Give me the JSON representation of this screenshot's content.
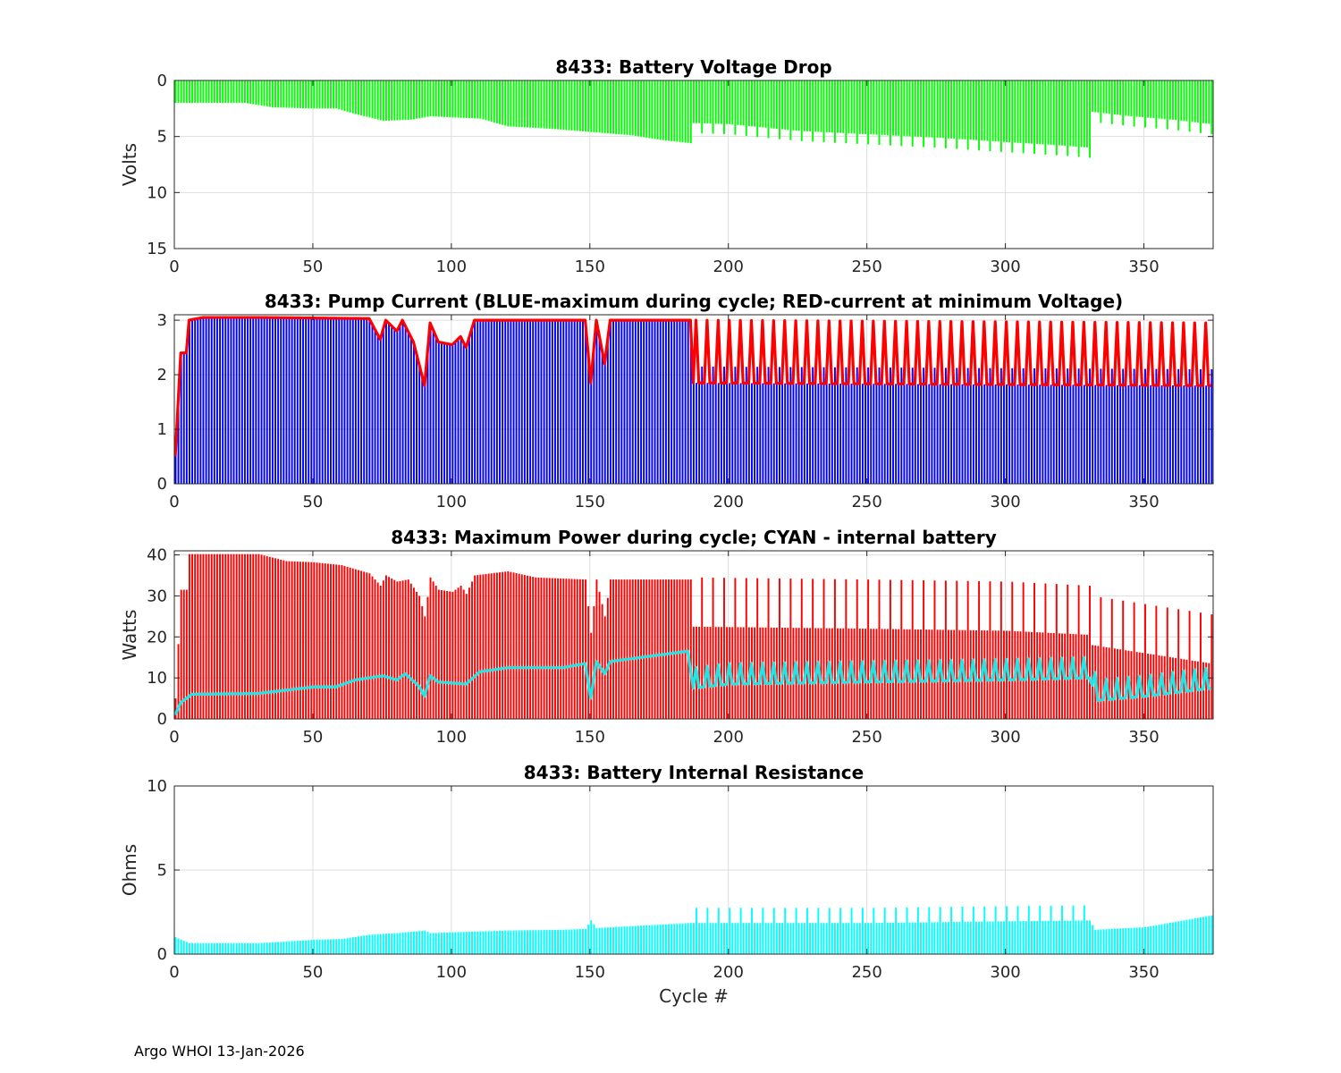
{
  "figure": {
    "footer": "Argo WHOI 13-Jan-2026",
    "colors": {
      "green": "#00ff00",
      "blue": "#0000ff",
      "red": "#ff0000",
      "cyan": "#00ffff",
      "cyan_line": "#22e6e6",
      "grid": "#dddddd",
      "axis": "#262626"
    }
  },
  "chart_data": [
    {
      "id": "voltage",
      "type": "bar",
      "title": "8433: Battery Voltage Drop",
      "xlabel": "",
      "ylabel": "Volts",
      "xlim": [
        0,
        375
      ],
      "ylim": [
        0,
        15
      ],
      "y_reversed": true,
      "xticks": [
        "0",
        "50",
        "100",
        "150",
        "200",
        "250",
        "300",
        "350"
      ],
      "yticks": [
        "0",
        "5",
        "10",
        "15"
      ],
      "series": [
        {
          "name": "voltage drop",
          "color": "#00ff00",
          "kind": "bars",
          "points": [
            [
              1,
              2.0
            ],
            [
              10,
              2.0
            ],
            [
              25,
              2.0
            ],
            [
              35,
              2.4
            ],
            [
              50,
              2.5
            ],
            [
              58,
              2.5
            ],
            [
              65,
              3.0
            ],
            [
              75,
              3.6
            ],
            [
              85,
              3.5
            ],
            [
              92,
              3.2
            ],
            [
              100,
              3.3
            ],
            [
              110,
              3.4
            ],
            [
              120,
              4.1
            ],
            [
              135,
              4.3
            ],
            [
              150,
              4.6
            ],
            [
              165,
              4.9
            ],
            [
              175,
              5.3
            ],
            [
              186,
              5.6
            ],
            [
              187,
              3.8
            ],
            [
              200,
              3.9
            ],
            [
              225,
              4.5
            ],
            [
              250,
              4.8
            ],
            [
              275,
              5.1
            ],
            [
              300,
              5.5
            ],
            [
              320,
              5.8
            ],
            [
              330,
              6.0
            ],
            [
              331,
              2.8
            ],
            [
              345,
              3.2
            ],
            [
              360,
              3.5
            ],
            [
              374,
              3.9
            ]
          ],
          "spikes": {
            "start": 190,
            "end": 374,
            "every": 4,
            "extra": 0.9
          }
        }
      ]
    },
    {
      "id": "current",
      "type": "bar",
      "title": "8433: Pump Current (BLUE-maximum during cycle; RED-current at minimum Voltage)",
      "xlabel": "",
      "ylabel": "",
      "xlim": [
        0,
        375
      ],
      "ylim": [
        0,
        3.1
      ],
      "xticks": [
        "0",
        "50",
        "100",
        "150",
        "200",
        "250",
        "300",
        "350"
      ],
      "yticks": [
        "0",
        "1",
        "2",
        "3"
      ],
      "series": [
        {
          "name": "maximum during cycle",
          "color": "#0000ff",
          "kind": "bars",
          "points": [
            [
              0,
              0.5
            ],
            [
              2,
              2.4
            ],
            [
              4,
              2.4
            ],
            [
              5,
              3.0
            ],
            [
              10,
              3.05
            ],
            [
              30,
              3.05
            ],
            [
              70,
              3.03
            ],
            [
              74,
              2.65
            ],
            [
              76,
              3.0
            ],
            [
              80,
              2.8
            ],
            [
              82,
              3.0
            ],
            [
              86,
              2.6
            ],
            [
              90,
              1.8
            ],
            [
              92,
              2.95
            ],
            [
              95,
              2.6
            ],
            [
              100,
              2.55
            ],
            [
              103,
              2.7
            ],
            [
              105,
              2.5
            ],
            [
              108,
              3.0
            ],
            [
              148,
              3.0
            ],
            [
              150,
              1.85
            ],
            [
              152,
              3.0
            ],
            [
              155,
              2.2
            ],
            [
              157,
              3.0
            ],
            [
              186,
              3.0
            ],
            [
              187,
              1.85
            ],
            [
              374,
              1.8
            ]
          ],
          "spikes": {
            "start": 190,
            "end": 374,
            "every": 4,
            "extra": 0.3
          }
        },
        {
          "name": "current at minimum voltage",
          "color": "#ff0000",
          "kind": "line",
          "points": [
            [
              0,
              0.5
            ],
            [
              2,
              2.4
            ],
            [
              4,
              2.4
            ],
            [
              5,
              3.0
            ],
            [
              10,
              3.05
            ],
            [
              30,
              3.05
            ],
            [
              70,
              3.03
            ],
            [
              74,
              2.65
            ],
            [
              76,
              3.0
            ],
            [
              80,
              2.8
            ],
            [
              82,
              3.0
            ],
            [
              86,
              2.6
            ],
            [
              90,
              1.8
            ],
            [
              92,
              2.95
            ],
            [
              95,
              2.6
            ],
            [
              100,
              2.55
            ],
            [
              103,
              2.7
            ],
            [
              105,
              2.5
            ],
            [
              108,
              3.0
            ],
            [
              148,
              3.0
            ],
            [
              150,
              1.85
            ],
            [
              152,
              3.0
            ],
            [
              155,
              2.2
            ],
            [
              157,
              3.0
            ],
            [
              186,
              3.0
            ],
            [
              187,
              1.85
            ],
            [
              374,
              1.8
            ]
          ],
          "spikes": {
            "start": 188,
            "end": 374,
            "every": 4,
            "extra": 1.15
          }
        }
      ]
    },
    {
      "id": "power",
      "type": "bar",
      "title": "8433: Maximum Power during cycle; CYAN - internal battery",
      "xlabel": "",
      "ylabel": "Watts",
      "xlim": [
        0,
        375
      ],
      "ylim": [
        0,
        41
      ],
      "xticks": [
        "0",
        "50",
        "100",
        "150",
        "200",
        "250",
        "300",
        "350"
      ],
      "yticks": [
        "0",
        "10",
        "20",
        "30",
        "40"
      ],
      "series": [
        {
          "name": "maximum power",
          "color": "#ff0000",
          "kind": "bars",
          "points": [
            [
              0,
              5
            ],
            [
              2,
              31.5
            ],
            [
              4,
              31.5
            ],
            [
              5,
              40.2
            ],
            [
              30,
              40.2
            ],
            [
              40,
              38.5
            ],
            [
              50,
              38.2
            ],
            [
              60,
              37.5
            ],
            [
              70,
              35.5
            ],
            [
              74,
              32.5
            ],
            [
              76,
              35.0
            ],
            [
              80,
              33.5
            ],
            [
              84,
              34.0
            ],
            [
              88,
              30.0
            ],
            [
              90,
              25.0
            ],
            [
              92,
              34.5
            ],
            [
              95,
              31.5
            ],
            [
              100,
              31.0
            ],
            [
              103,
              32.5
            ],
            [
              105,
              30.5
            ],
            [
              108,
              35.0
            ],
            [
              120,
              36.0
            ],
            [
              130,
              34.5
            ],
            [
              148,
              34.0
            ],
            [
              150,
              21.0
            ],
            [
              152,
              34.0
            ],
            [
              155,
              25.0
            ],
            [
              157,
              34.0
            ],
            [
              186,
              34.0
            ],
            [
              187,
              22.5
            ],
            [
              250,
              22.0
            ],
            [
              300,
              21.5
            ],
            [
              330,
              20.5
            ],
            [
              331,
              18.0
            ],
            [
              374,
              13.5
            ]
          ],
          "spikes": {
            "start": 190,
            "end": 374,
            "every": 4,
            "extra": 12.0
          }
        },
        {
          "name": "internal battery",
          "color": "#22e6e6",
          "kind": "line",
          "points": [
            [
              0,
              1
            ],
            [
              2,
              4
            ],
            [
              4,
              5
            ],
            [
              6,
              6
            ],
            [
              30,
              6.2
            ],
            [
              40,
              7.0
            ],
            [
              50,
              7.8
            ],
            [
              58,
              7.8
            ],
            [
              65,
              9.5
            ],
            [
              75,
              10.5
            ],
            [
              80,
              9.5
            ],
            [
              83,
              11.0
            ],
            [
              88,
              8.0
            ],
            [
              90,
              5.5
            ],
            [
              92,
              10.5
            ],
            [
              95,
              9.0
            ],
            [
              105,
              8.5
            ],
            [
              110,
              11.5
            ],
            [
              120,
              12.5
            ],
            [
              140,
              12.5
            ],
            [
              148,
              13.5
            ],
            [
              150,
              5.0
            ],
            [
              152,
              14.0
            ],
            [
              155,
              11.0
            ],
            [
              157,
              14.0
            ],
            [
              185,
              16.5
            ],
            [
              187,
              7.5
            ],
            [
              200,
              8.5
            ],
            [
              250,
              9.0
            ],
            [
              300,
              9.5
            ],
            [
              330,
              10.0
            ],
            [
              333,
              4.5
            ],
            [
              350,
              5.5
            ],
            [
              374,
              7.5
            ]
          ],
          "spikes": {
            "start": 188,
            "end": 374,
            "every": 4,
            "extra": 5.0
          }
        }
      ]
    },
    {
      "id": "resistance",
      "type": "bar",
      "title": "8433: Battery Internal Resistance",
      "xlabel": "Cycle #",
      "ylabel": "Ohms",
      "xlim": [
        0,
        375
      ],
      "ylim": [
        0,
        10
      ],
      "xticks": [
        "0",
        "50",
        "100",
        "150",
        "200",
        "250",
        "300",
        "350"
      ],
      "yticks": [
        "0",
        "5",
        "10"
      ],
      "series": [
        {
          "name": "internal resistance",
          "color": "#00ffff",
          "kind": "bars",
          "points": [
            [
              0,
              1.0
            ],
            [
              5,
              0.65
            ],
            [
              30,
              0.65
            ],
            [
              50,
              0.85
            ],
            [
              60,
              0.9
            ],
            [
              70,
              1.15
            ],
            [
              80,
              1.25
            ],
            [
              90,
              1.4
            ],
            [
              92,
              1.25
            ],
            [
              110,
              1.35
            ],
            [
              120,
              1.4
            ],
            [
              140,
              1.45
            ],
            [
              148,
              1.5
            ],
            [
              150,
              2.0
            ],
            [
              152,
              1.55
            ],
            [
              186,
              1.85
            ],
            [
              187,
              1.85
            ],
            [
              250,
              1.85
            ],
            [
              300,
              1.95
            ],
            [
              330,
              2.0
            ],
            [
              332,
              1.45
            ],
            [
              350,
              1.6
            ],
            [
              374,
              2.3
            ]
          ],
          "spikes": {
            "start": 188,
            "end": 330,
            "every": 4,
            "extra": 0.9
          }
        }
      ]
    }
  ]
}
